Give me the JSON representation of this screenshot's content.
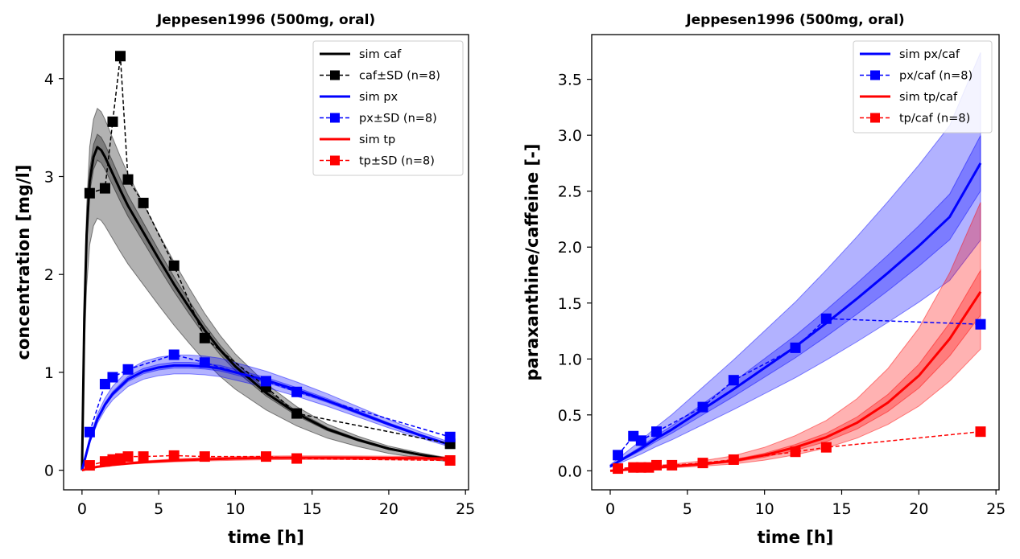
{
  "chart_data": [
    {
      "type": "line",
      "title": "Jeppesen1996 (500mg, oral)",
      "xlabel": "time [h]",
      "ylabel": "concentration [mg/l]",
      "xlim": [
        -1.2,
        25.2
      ],
      "ylim": [
        -0.2,
        4.45
      ],
      "xticks": [
        0,
        5,
        10,
        15,
        20,
        25
      ],
      "xtick_labels": [
        "0",
        "5",
        "10",
        "15",
        "20",
        "25"
      ],
      "yticks": [
        0,
        1,
        2,
        3,
        4
      ],
      "ytick_labels": [
        "0",
        "1",
        "2",
        "3",
        "4"
      ],
      "legend_position": "upper-right",
      "sim_series": [
        {
          "name": "sim caf",
          "color": "#000000",
          "x": [
            0,
            0.15,
            0.3,
            0.5,
            0.75,
            1,
            1.25,
            1.5,
            2,
            2.5,
            3,
            4,
            5,
            6,
            7,
            8,
            9,
            10,
            12,
            14,
            16,
            18,
            20,
            22,
            24
          ],
          "y": [
            0,
            1.55,
            2.4,
            2.95,
            3.2,
            3.3,
            3.27,
            3.2,
            3.03,
            2.86,
            2.7,
            2.43,
            2.16,
            1.9,
            1.66,
            1.43,
            1.23,
            1.06,
            0.79,
            0.58,
            0.42,
            0.31,
            0.22,
            0.16,
            0.11
          ],
          "band_outer": [
            0.78,
            1.12
          ],
          "band_inner": [
            0.96,
            1.04
          ]
        },
        {
          "name": "sim px",
          "color": "#0000ff",
          "x": [
            0,
            0.5,
            1,
            1.5,
            2,
            3,
            4,
            5,
            6,
            7,
            8,
            9,
            10,
            12,
            14,
            16,
            18,
            20,
            22,
            24
          ],
          "y": [
            0,
            0.3,
            0.52,
            0.67,
            0.78,
            0.93,
            1.01,
            1.05,
            1.07,
            1.07,
            1.06,
            1.04,
            1.0,
            0.92,
            0.82,
            0.71,
            0.59,
            0.47,
            0.36,
            0.26
          ],
          "band_outer": [
            0.92,
            1.1
          ],
          "band_inner": [
            0.975,
            1.03
          ]
        },
        {
          "name": "sim tp",
          "color": "#ff0000",
          "x": [
            0,
            0.5,
            1,
            2,
            3,
            4,
            6,
            8,
            10,
            12,
            14,
            16,
            18,
            20,
            22,
            24
          ],
          "y": [
            0,
            0.02,
            0.035,
            0.055,
            0.07,
            0.082,
            0.1,
            0.112,
            0.12,
            0.126,
            0.128,
            0.128,
            0.127,
            0.125,
            0.122,
            0.119
          ],
          "band_outer": [
            0.85,
            1.15
          ],
          "band_inner": [
            0.95,
            1.05
          ]
        }
      ],
      "data_series": [
        {
          "name": "caf±SD (n=8)",
          "color": "#000000",
          "x": [
            0.5,
            1.5,
            2,
            2.5,
            3,
            4,
            6,
            8,
            12,
            14,
            24
          ],
          "y": [
            2.83,
            2.88,
            3.56,
            4.23,
            2.97,
            2.73,
            2.09,
            1.35,
            0.85,
            0.58,
            0.27
          ]
        },
        {
          "name": "px±SD (n=8)",
          "color": "#0000ff",
          "x": [
            0.5,
            1.5,
            2,
            3,
            6,
            8,
            12,
            14,
            24
          ],
          "y": [
            0.39,
            0.88,
            0.95,
            1.03,
            1.18,
            1.1,
            0.91,
            0.8,
            0.34
          ]
        },
        {
          "name": "tp±SD (n=8)",
          "color": "#ff0000",
          "x": [
            0.5,
            1.5,
            2,
            2.5,
            3,
            4,
            6,
            8,
            12,
            14,
            24
          ],
          "y": [
            0.05,
            0.09,
            0.11,
            0.12,
            0.14,
            0.14,
            0.15,
            0.14,
            0.14,
            0.12,
            0.1
          ]
        }
      ],
      "legend_entries": [
        "sim caf",
        "caf±SD (n=8)",
        "sim px",
        "px±SD (n=8)",
        "sim tp",
        "tp±SD (n=8)"
      ]
    },
    {
      "type": "line",
      "title": "Jeppesen1996 (500mg, oral)",
      "xlabel": "time [h]",
      "ylabel": "paraxanthine/caffeine [-]",
      "xlim": [
        -1.2,
        25.2
      ],
      "ylim": [
        -0.17,
        3.9
      ],
      "xticks": [
        0,
        5,
        10,
        15,
        20,
        25
      ],
      "xtick_labels": [
        "0",
        "5",
        "10",
        "15",
        "20",
        "25"
      ],
      "yticks": [
        0,
        0.5,
        1,
        1.5,
        2,
        2.5,
        3,
        3.5
      ],
      "ytick_labels": [
        "0.0",
        "0.5",
        "1.0",
        "1.5",
        "2.0",
        "2.5",
        "3.0",
        "3.5"
      ],
      "legend_position": "upper-right",
      "sim_series": [
        {
          "name": "sim px/caf",
          "color": "#0000ff",
          "x": [
            0,
            1,
            2,
            3,
            4,
            6,
            8,
            10,
            12,
            14,
            16,
            18,
            20,
            22,
            24
          ],
          "y": [
            0.04,
            0.12,
            0.2,
            0.29,
            0.37,
            0.55,
            0.73,
            0.92,
            1.11,
            1.32,
            1.54,
            1.77,
            2.01,
            2.27,
            2.75
          ],
          "band_outer": [
            0.75,
            1.36
          ],
          "band_inner": [
            0.91,
            1.09
          ]
        },
        {
          "name": "sim tp/caf",
          "color": "#ff0000",
          "x": [
            0,
            2,
            4,
            6,
            8,
            10,
            12,
            14,
            16,
            18,
            20,
            22,
            24
          ],
          "y": [
            0.0,
            0.02,
            0.04,
            0.06,
            0.09,
            0.14,
            0.21,
            0.3,
            0.43,
            0.61,
            0.85,
            1.18,
            1.6
          ],
          "band_outer": [
            0.68,
            1.5
          ],
          "band_inner": [
            0.87,
            1.12
          ]
        }
      ],
      "data_series": [
        {
          "name": "px/caf (n=8)",
          "color": "#0000ff",
          "x": [
            0.5,
            1.5,
            2,
            3,
            6,
            8,
            12,
            14,
            24
          ],
          "y": [
            0.14,
            0.31,
            0.27,
            0.35,
            0.57,
            0.81,
            1.1,
            1.36,
            1.31
          ]
        },
        {
          "name": "tp/caf (n=8)",
          "color": "#ff0000",
          "x": [
            0.5,
            1.5,
            2,
            2.5,
            3,
            4,
            6,
            8,
            12,
            14,
            24
          ],
          "y": [
            0.02,
            0.03,
            0.03,
            0.03,
            0.05,
            0.05,
            0.07,
            0.1,
            0.17,
            0.21,
            0.35
          ]
        }
      ],
      "legend_entries": [
        "sim px/caf",
        "px/caf (n=8)",
        "sim tp/caf",
        "tp/caf (n=8)"
      ]
    }
  ]
}
